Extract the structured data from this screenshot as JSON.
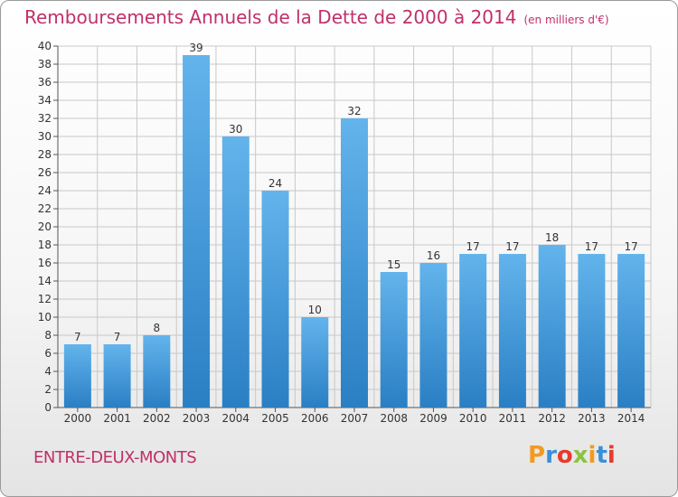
{
  "header": {
    "title": "Remboursements Annuels de la Dette de 2000 à 2014",
    "unit": "(en milliers d'€)"
  },
  "footer": {
    "commune": "ENTRE-DEUX-MONTS",
    "brand": "Proxiti"
  },
  "colors": {
    "title": "#c0306a",
    "bar_top": "#63b4ec",
    "bar_bottom": "#2a7fc4",
    "grid": "#c8c8c8"
  },
  "chart_data": {
    "type": "bar",
    "title": "Remboursements Annuels de la Dette de 2000 à 2014",
    "categories": [
      "2000",
      "2001",
      "2002",
      "2003",
      "2004",
      "2005",
      "2006",
      "2007",
      "2008",
      "2009",
      "2010",
      "2011",
      "2012",
      "2013",
      "2014"
    ],
    "values": [
      7,
      7,
      8,
      39,
      30,
      24,
      10,
      32,
      15,
      16,
      17,
      17,
      18,
      17,
      17
    ],
    "ylim": [
      0,
      40
    ],
    "yticks": [
      0,
      2,
      4,
      6,
      8,
      10,
      12,
      14,
      16,
      18,
      20,
      22,
      24,
      26,
      28,
      30,
      32,
      34,
      36,
      38,
      40
    ],
    "grid": true,
    "data_labels": true
  }
}
